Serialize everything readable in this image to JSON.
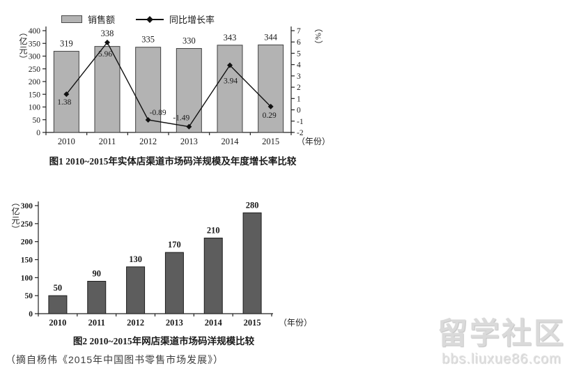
{
  "chart_data": [
    {
      "type": "combo",
      "caption": "图1 2010~2015年实体店渠道市场码洋规模及年度增长率比较",
      "categories": [
        "2010",
        "2011",
        "2012",
        "2013",
        "2014",
        "2015"
      ],
      "series": [
        {
          "name": "销售额",
          "type": "bar",
          "axis": "left",
          "values": [
            319,
            338,
            335,
            330,
            343,
            344
          ],
          "color": "#b3b3b3",
          "border": "#3f3f3f"
        },
        {
          "name": "同比增长率",
          "type": "line",
          "axis": "right",
          "values": [
            1.38,
            5.96,
            -0.89,
            -1.49,
            3.94,
            0.29
          ],
          "color": "#111111"
        }
      ],
      "left_axis": {
        "unit": "（亿元）",
        "min": 0,
        "max": 400,
        "step": 50
      },
      "right_axis": {
        "unit": "（%）",
        "min": -2,
        "max": 7,
        "step": 1
      },
      "x_axis": {
        "unit": "（年份）"
      },
      "legend_position": "top-left",
      "grid": false
    },
    {
      "type": "bar",
      "caption": "图2 2010~2015年网店渠道市场码洋规模比较",
      "categories": [
        "2010",
        "2011",
        "2012",
        "2013",
        "2014",
        "2015"
      ],
      "series": [
        {
          "type": "bar",
          "axis": "left",
          "values": [
            50,
            90,
            130,
            170,
            210,
            280
          ],
          "color": "#5d5d5d",
          "border": "#1c1c1c"
        }
      ],
      "left_axis": {
        "unit": "（亿元）",
        "min": 0,
        "max": 300,
        "step": 50
      },
      "x_axis": {
        "unit": "（年份）"
      },
      "grid": false
    }
  ],
  "footer": {
    "source_note": "（摘自杨伟《2015年中国图书零售市场发展》）"
  },
  "watermark": {
    "title": "留学社区",
    "url": "bbs.liuxue86.com"
  }
}
